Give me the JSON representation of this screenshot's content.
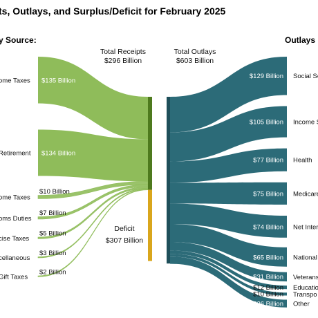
{
  "chart_data": {
    "type": "sankey",
    "title": "ts, Outlays, and Surplus/Deficit for February 2025",
    "left_header": "y Source:",
    "right_header": "Outlays",
    "total_receipts": {
      "line1": "Total Receipts",
      "line2": "$296 Billion",
      "value": 296
    },
    "total_outlays": {
      "line1": "Total Outlays",
      "line2": "$603 Billion",
      "value": 603
    },
    "deficit": {
      "line1": "Deficit",
      "line2": "$307 Billion",
      "value": 307
    },
    "receipts": [
      {
        "label": "ome Taxes",
        "value_label": "$135 Billion",
        "value": 135
      },
      {
        "label": "Retirement",
        "value_label": "$134 Billion",
        "value": 134
      },
      {
        "label": "ome Taxes",
        "value_label": "$10 Billion",
        "value": 10
      },
      {
        "label": "oms Duties",
        "value_label": "$7 Billion",
        "value": 7
      },
      {
        "label": "cise Taxes",
        "value_label": "$5 Billion",
        "value": 5
      },
      {
        "label": "cellaneous",
        "value_label": "$3 Billion",
        "value": 3
      },
      {
        "label": "Gift Taxes",
        "value_label": "$2 Billion",
        "value": 2
      }
    ],
    "outlays": [
      {
        "label": "Social Se",
        "value_label": "$129 Billion",
        "value": 129
      },
      {
        "label": "Income S",
        "value_label": "$105 Billion",
        "value": 105
      },
      {
        "label": "Health",
        "value_label": "$77 Billion",
        "value": 77
      },
      {
        "label": "Medicare",
        "value_label": "$75 Billion",
        "value": 75
      },
      {
        "label": "Net Inter",
        "value_label": "$74 Billion",
        "value": 74
      },
      {
        "label": "National",
        "value_label": "$65 Billion",
        "value": 65
      },
      {
        "label": "Veterans",
        "value_label": "$31 Billion",
        "value": 31
      },
      {
        "label": "Educatio",
        "value_label": "$12 Billion",
        "value": 12
      },
      {
        "label": "Transpo",
        "value_label": "$10 Billion",
        "value": 10
      },
      {
        "label": "Other",
        "value_label": "$26 Billion",
        "value": 26
      }
    ],
    "colors": {
      "receipts": "#8fbc5a",
      "receipts_bar": "#4e7a1e",
      "deficit_bar": "#d9a61c",
      "outlays": "#2c6b78",
      "outlays_bar": "#1e4f5a",
      "value_text": "#ffffff",
      "small_value_text": "#111111"
    }
  }
}
